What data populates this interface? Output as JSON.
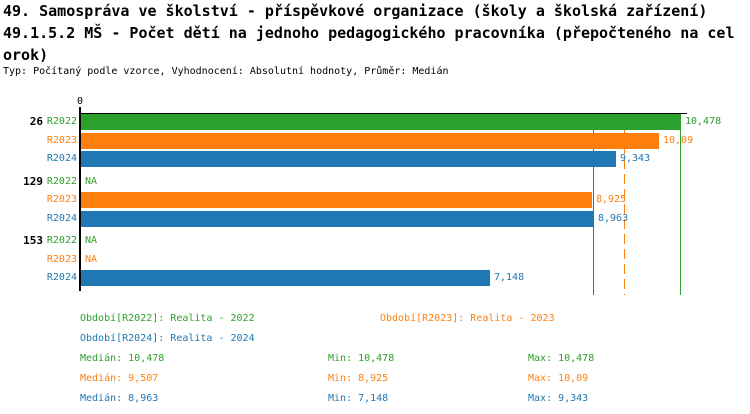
{
  "header": {
    "title_line1": "49. Samospráva ve školství - příspěvkové organizace (školy a školská zařízení)",
    "title_line2": "49.1.5.2 MŠ - Počet dětí na jednoho pedagogického pracovníka (přepočteného na cel",
    "title_line3": "orok)",
    "meta": "Typ: Počítaný podle vzorce, Vyhodnocení: Absolutní hodnoty, Průměr: Medián"
  },
  "chart_data": {
    "type": "bar",
    "orientation": "horizontal",
    "value_axis": {
      "position": "top",
      "zero_label": "0",
      "min": 0
    },
    "series_colors": {
      "R2022": "#2ca02c",
      "R2023": "#ff7f0e",
      "R2024": "#1f77b4"
    },
    "axis_color": "#000000",
    "groups": [
      {
        "label": "26",
        "rows": [
          {
            "series": "R2022",
            "value": 10.478,
            "display": "10,478"
          },
          {
            "series": "R2023",
            "value": 10.09,
            "display": "10,09"
          },
          {
            "series": "R2024",
            "value": 9.343,
            "display": "9,343"
          }
        ]
      },
      {
        "label": "129",
        "rows": [
          {
            "series": "R2022",
            "value": null,
            "display": "NA"
          },
          {
            "series": "R2023",
            "value": 8.925,
            "display": "8,925"
          },
          {
            "series": "R2024",
            "value": 8.963,
            "display": "8,963"
          }
        ]
      },
      {
        "label": "153",
        "rows": [
          {
            "series": "R2022",
            "value": null,
            "display": "NA"
          },
          {
            "series": "R2023",
            "value": null,
            "display": "NA"
          },
          {
            "series": "R2024",
            "value": 7.148,
            "display": "7,148"
          }
        ]
      }
    ],
    "median_lines": [
      {
        "series": "R2022",
        "value": 10.478,
        "dashed": false
      },
      {
        "series": "R2023",
        "value": 9.507,
        "dashed": true
      },
      {
        "series": "R2024",
        "value": 8.963,
        "dashed": false
      }
    ]
  },
  "legend": {
    "items": [
      {
        "series": "R2022",
        "label": "Období[R2022]: Realita - 2022"
      },
      {
        "series": "R2023",
        "label": "Období[R2023]: Realita - 2023"
      },
      {
        "series": "R2024",
        "label": "Období[R2024]: Realita - 2024"
      }
    ]
  },
  "stats": {
    "rows": [
      {
        "series": "R2022",
        "median": "Medián: 10,478",
        "min": "Min: 10,478",
        "max": "Max: 10,478"
      },
      {
        "series": "R2023",
        "median": "Medián: 9,507",
        "min": "Min: 8,925",
        "max": "Max: 10,09"
      },
      {
        "series": "R2024",
        "median": "Medián: 8,963",
        "min": "Min: 7,148",
        "max": "Max: 9,343"
      }
    ]
  }
}
